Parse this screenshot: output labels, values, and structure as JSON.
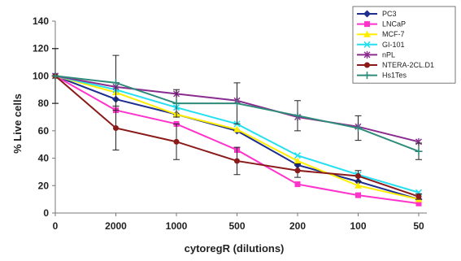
{
  "chart_data": {
    "type": "line",
    "title": "",
    "xlabel": "cytoregR (dilutions)",
    "ylabel": "% Live cells",
    "ylim": [
      0,
      140
    ],
    "yticks": [
      0,
      20,
      40,
      60,
      80,
      100,
      120,
      140
    ],
    "categories": [
      "0",
      "2000",
      "1000",
      "500",
      "200",
      "100",
      "50"
    ],
    "grid": false,
    "legend_position": "top-right",
    "series": [
      {
        "name": "PC3",
        "color": "#1f2f8f",
        "marker": "diamond",
        "values": [
          100,
          83,
          72,
          60,
          35,
          23,
          10
        ]
      },
      {
        "name": "LNCaP",
        "color": "#ff33cc",
        "marker": "square",
        "values": [
          100,
          75,
          65,
          46,
          21,
          13,
          7
        ]
      },
      {
        "name": "MCF-7",
        "color": "#ffee00",
        "marker": "triangle",
        "values": [
          100,
          88,
          72,
          61,
          38,
          20,
          10
        ]
      },
      {
        "name": "GI-101",
        "color": "#22e0f0",
        "marker": "x",
        "values": [
          100,
          90,
          77,
          65,
          42,
          28,
          15
        ]
      },
      {
        "name": "nPL",
        "color": "#8a2b8f",
        "marker": "star",
        "values": [
          100,
          92,
          87,
          82,
          70,
          63,
          52
        ]
      },
      {
        "name": "NTERA-2CL.D1",
        "color": "#8b1a1a",
        "marker": "circle",
        "values": [
          100,
          62,
          52,
          38,
          31,
          27,
          12
        ],
        "errors": [
          20,
          16,
          13,
          10,
          5,
          4,
          2
        ]
      },
      {
        "name": "Hs1Tes",
        "color": "#2e8b7a",
        "marker": "plus",
        "values": [
          100,
          95,
          80,
          80,
          71,
          62,
          45
        ],
        "errors": [
          20,
          20,
          10,
          15,
          11,
          9,
          6
        ]
      }
    ]
  }
}
